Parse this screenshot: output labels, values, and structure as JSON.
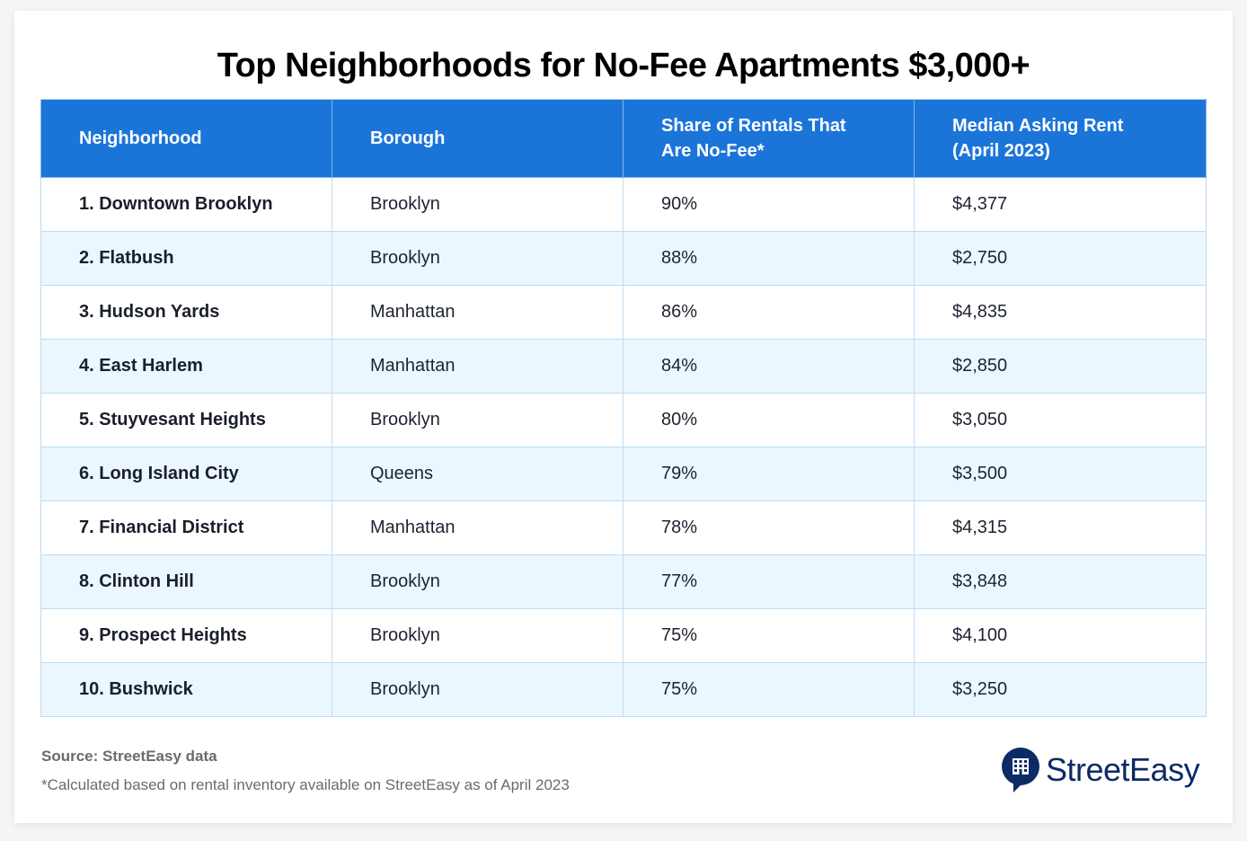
{
  "title": "Top Neighborhoods for No-Fee Apartments $3,000+",
  "table": {
    "headers": [
      "Neighborhood",
      "Borough",
      "Share of Rentals That Are No-Fee*",
      "Median Asking Rent (April 2023)"
    ],
    "rows": [
      [
        "1. Downtown Brooklyn",
        "Brooklyn",
        "90%",
        "$4,377"
      ],
      [
        "2. Flatbush",
        "Brooklyn",
        "88%",
        "$2,750"
      ],
      [
        "3. Hudson Yards",
        "Manhattan",
        "86%",
        "$4,835"
      ],
      [
        "4. East Harlem",
        "Manhattan",
        "84%",
        "$2,850"
      ],
      [
        "5. Stuyvesant Heights",
        "Brooklyn",
        "80%",
        "$3,050"
      ],
      [
        "6. Long Island City",
        "Queens",
        "79%",
        "$3,500"
      ],
      [
        "7. Financial District",
        "Manhattan",
        "78%",
        "$4,315"
      ],
      [
        "8. Clinton Hill",
        "Brooklyn",
        "77%",
        "$3,848"
      ],
      [
        "9. Prospect Heights",
        "Brooklyn",
        "75%",
        "$4,100"
      ],
      [
        "10. Bushwick",
        "Brooklyn",
        "75%",
        "$3,250"
      ]
    ]
  },
  "footer": {
    "source": "Source: StreetEasy data",
    "note": "*Calculated based on rental inventory available on StreetEasy as of April 2023"
  },
  "logo": {
    "text": "StreetEasy",
    "icon": "building-speech-bubble-icon",
    "color": "#0c2a66"
  },
  "colors": {
    "header_bg": "#1b75d9",
    "row_alt_bg": "#ebf7fe",
    "border": "#bfdcf3"
  }
}
